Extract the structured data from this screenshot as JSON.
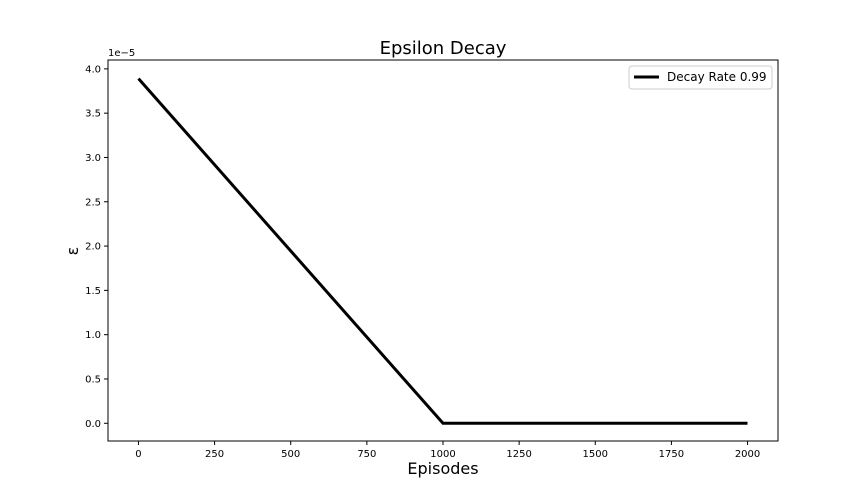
{
  "chart_data": {
    "type": "line",
    "title": "Epsilon Decay",
    "xlabel": "Episodes",
    "ylabel": "ε",
    "y_offset_label": "1e−5",
    "xlim": [
      -100,
      2100
    ],
    "ylim": [
      -0.2,
      4.1
    ],
    "x_ticks": [
      0,
      250,
      500,
      750,
      1000,
      1250,
      1500,
      1750,
      2000
    ],
    "x_tick_labels": [
      "0",
      "250",
      "500",
      "750",
      "1000",
      "1250",
      "1500",
      "1750",
      "2000"
    ],
    "y_ticks": [
      0.0,
      0.5,
      1.0,
      1.5,
      2.0,
      2.5,
      3.0,
      3.5,
      4.0
    ],
    "y_tick_labels": [
      "0.0",
      "0.5",
      "1.0",
      "1.5",
      "2.0",
      "2.5",
      "3.0",
      "3.5",
      "4.0"
    ],
    "grid": false,
    "legend_position": "top-right",
    "series": [
      {
        "name": "Decay Rate 0.99",
        "color": "#000000",
        "x": [
          0,
          1000,
          2000
        ],
        "y": [
          3.89,
          0.0,
          0.0
        ]
      }
    ]
  }
}
